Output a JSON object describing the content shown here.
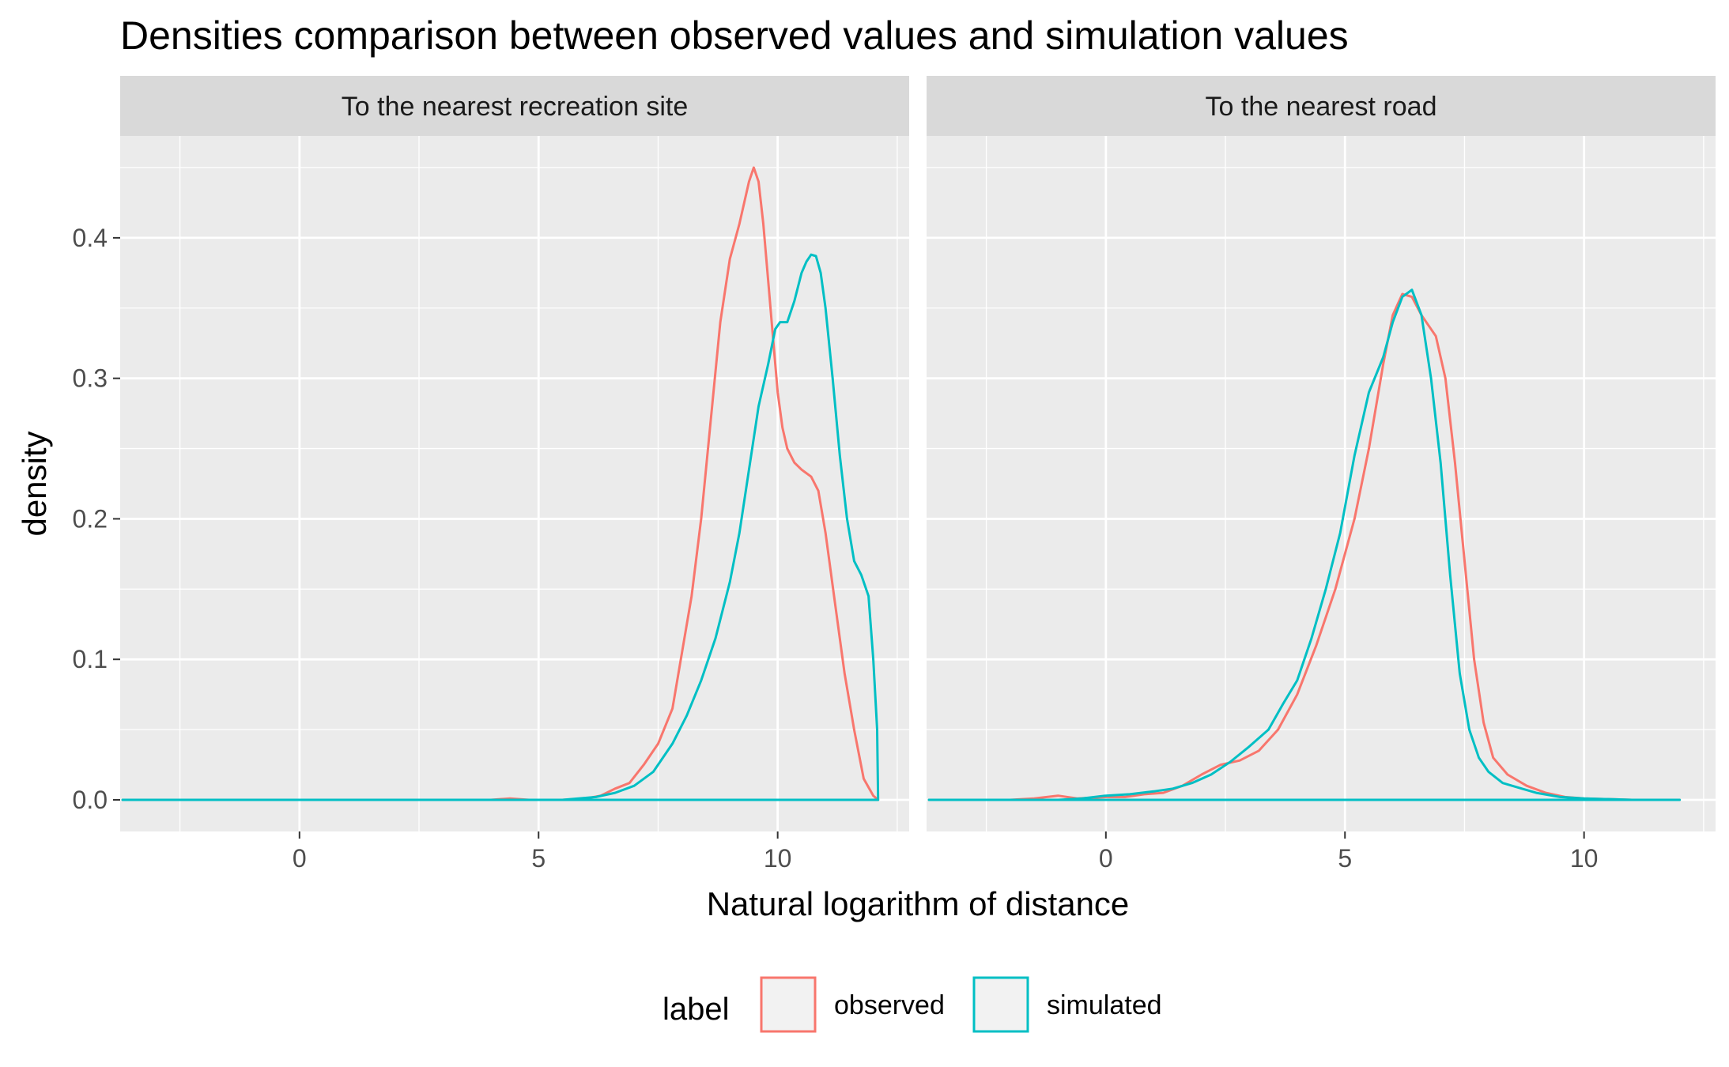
{
  "chart_data": {
    "type": "line",
    "title": "Densities comparison between observed values and simulation values",
    "xlabel": "Natural logarithm of distance",
    "ylabel": "density",
    "xlim": [
      -3.75,
      12.75
    ],
    "ylim": [
      -0.0225,
      0.4725
    ],
    "x_ticks": [
      0,
      5,
      10
    ],
    "y_ticks": [
      0.0,
      0.1,
      0.2,
      0.3,
      0.4
    ],
    "x_tick_labels": [
      "0",
      "5",
      "10"
    ],
    "y_tick_labels": [
      "0.0",
      "0.1",
      "0.2",
      "0.3",
      "0.4"
    ],
    "grid": true,
    "legend": {
      "title": "label",
      "position": "bottom",
      "entries": [
        {
          "name": "observed",
          "color": "#F8766D"
        },
        {
          "name": "simulated",
          "color": "#00BFC4"
        }
      ]
    },
    "facets": [
      {
        "label": "To the nearest recreation site",
        "series": [
          {
            "name": "observed",
            "color": "#F8766D",
            "x": [
              -3.7,
              4.0,
              4.4,
              4.8,
              5.5,
              6.0,
              6.3,
              6.6,
              6.9,
              7.2,
              7.5,
              7.8,
              8.0,
              8.2,
              8.4,
              8.6,
              8.8,
              9.0,
              9.2,
              9.4,
              9.5,
              9.6,
              9.7,
              9.8,
              9.9,
              10.0,
              10.1,
              10.2,
              10.35,
              10.5,
              10.7,
              10.85,
              11.0,
              11.2,
              11.4,
              11.6,
              11.8,
              12.0,
              12.1
            ],
            "y": [
              0.0,
              0.0,
              0.001,
              0.0,
              0.0,
              0.001,
              0.003,
              0.008,
              0.012,
              0.025,
              0.04,
              0.065,
              0.105,
              0.145,
              0.2,
              0.27,
              0.34,
              0.385,
              0.41,
              0.44,
              0.45,
              0.44,
              0.41,
              0.37,
              0.33,
              0.29,
              0.265,
              0.25,
              0.24,
              0.235,
              0.23,
              0.22,
              0.19,
              0.14,
              0.09,
              0.05,
              0.015,
              0.003,
              0.0
            ]
          },
          {
            "name": "simulated",
            "color": "#00BFC4",
            "x": [
              -3.7,
              5.5,
              6.2,
              6.6,
              7.0,
              7.4,
              7.8,
              8.1,
              8.4,
              8.7,
              9.0,
              9.2,
              9.4,
              9.6,
              9.8,
              9.95,
              10.05,
              10.2,
              10.35,
              10.5,
              10.6,
              10.7,
              10.8,
              10.9,
              11.0,
              11.15,
              11.3,
              11.45,
              11.6,
              11.75,
              11.9,
              12.0,
              12.08,
              12.1
            ],
            "y": [
              0.0,
              0.0,
              0.002,
              0.005,
              0.01,
              0.02,
              0.04,
              0.06,
              0.085,
              0.115,
              0.155,
              0.19,
              0.235,
              0.28,
              0.31,
              0.335,
              0.34,
              0.34,
              0.355,
              0.375,
              0.383,
              0.388,
              0.387,
              0.375,
              0.35,
              0.3,
              0.245,
              0.2,
              0.17,
              0.16,
              0.145,
              0.1,
              0.05,
              0.0
            ]
          }
        ]
      },
      {
        "label": "To the nearest road",
        "series": [
          {
            "name": "observed",
            "color": "#F8766D",
            "x": [
              -3.7,
              -2.0,
              -1.5,
              -1.0,
              -0.6,
              0.0,
              0.4,
              0.8,
              1.2,
              1.6,
              2.0,
              2.4,
              2.8,
              3.2,
              3.6,
              4.0,
              4.4,
              4.8,
              5.2,
              5.5,
              5.8,
              6.0,
              6.2,
              6.4,
              6.6,
              6.9,
              7.1,
              7.3,
              7.5,
              7.7,
              7.9,
              8.1,
              8.4,
              8.8,
              9.2,
              9.6,
              10.0,
              11.0,
              12.0
            ],
            "y": [
              0.0,
              0.0,
              0.001,
              0.003,
              0.001,
              0.002,
              0.002,
              0.004,
              0.005,
              0.01,
              0.018,
              0.025,
              0.028,
              0.035,
              0.05,
              0.075,
              0.11,
              0.15,
              0.2,
              0.25,
              0.31,
              0.345,
              0.36,
              0.358,
              0.345,
              0.33,
              0.3,
              0.24,
              0.17,
              0.1,
              0.055,
              0.03,
              0.018,
              0.01,
              0.005,
              0.002,
              0.001,
              0.0,
              0.0
            ]
          },
          {
            "name": "simulated",
            "color": "#00BFC4",
            "x": [
              -3.7,
              -1.0,
              -0.5,
              0.0,
              0.5,
              1.0,
              1.4,
              1.8,
              2.2,
              2.6,
              3.0,
              3.4,
              3.7,
              4.0,
              4.3,
              4.6,
              4.9,
              5.2,
              5.5,
              5.8,
              6.0,
              6.2,
              6.4,
              6.6,
              6.8,
              7.0,
              7.2,
              7.4,
              7.6,
              7.8,
              8.0,
              8.3,
              8.7,
              9.0,
              9.5,
              10.0,
              11.0,
              12.0
            ],
            "y": [
              0.0,
              0.0,
              0.001,
              0.003,
              0.004,
              0.006,
              0.008,
              0.012,
              0.018,
              0.027,
              0.038,
              0.05,
              0.068,
              0.085,
              0.115,
              0.15,
              0.19,
              0.245,
              0.29,
              0.315,
              0.34,
              0.358,
              0.363,
              0.345,
              0.3,
              0.24,
              0.16,
              0.09,
              0.05,
              0.03,
              0.02,
              0.012,
              0.008,
              0.005,
              0.002,
              0.001,
              0.0,
              0.0
            ]
          }
        ]
      }
    ]
  }
}
